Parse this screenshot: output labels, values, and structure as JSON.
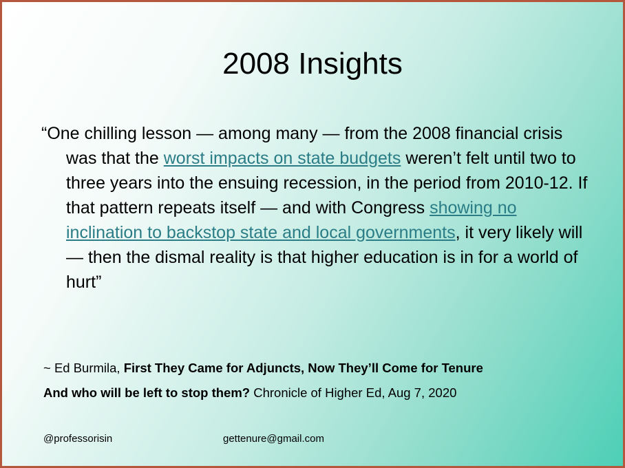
{
  "slide": {
    "title": "2008 Insights",
    "quote": {
      "part1": "“One chilling lesson — among many — from the 2008 financial crisis was that the ",
      "link1": "worst impacts on state budgets",
      "part2": " weren’t felt until two to three years into the ensuing recession, in the period from 2010-12. If that pattern repeats itself — and with Congress ",
      "link2": "showing no inclination to backstop state and local governments",
      "part3": ", it very likely will — then the dismal reality is that higher education is in for a world of hurt”"
    },
    "citation": {
      "prefix": "~ Ed Burmila, ",
      "article_title": "First They Came for Adjuncts, Now They’ll Come for Tenure",
      "subtitle": "And who will be left to stop them?",
      "source": " Chronicle of Higher Ed, Aug 7, 2020"
    },
    "footer": {
      "handle": "@professorisin",
      "email": "gettenure@gmail.com"
    },
    "colors": {
      "link": "#2a7d86",
      "border": "#b5573d",
      "gradient_end": "#4dcfb6"
    }
  }
}
